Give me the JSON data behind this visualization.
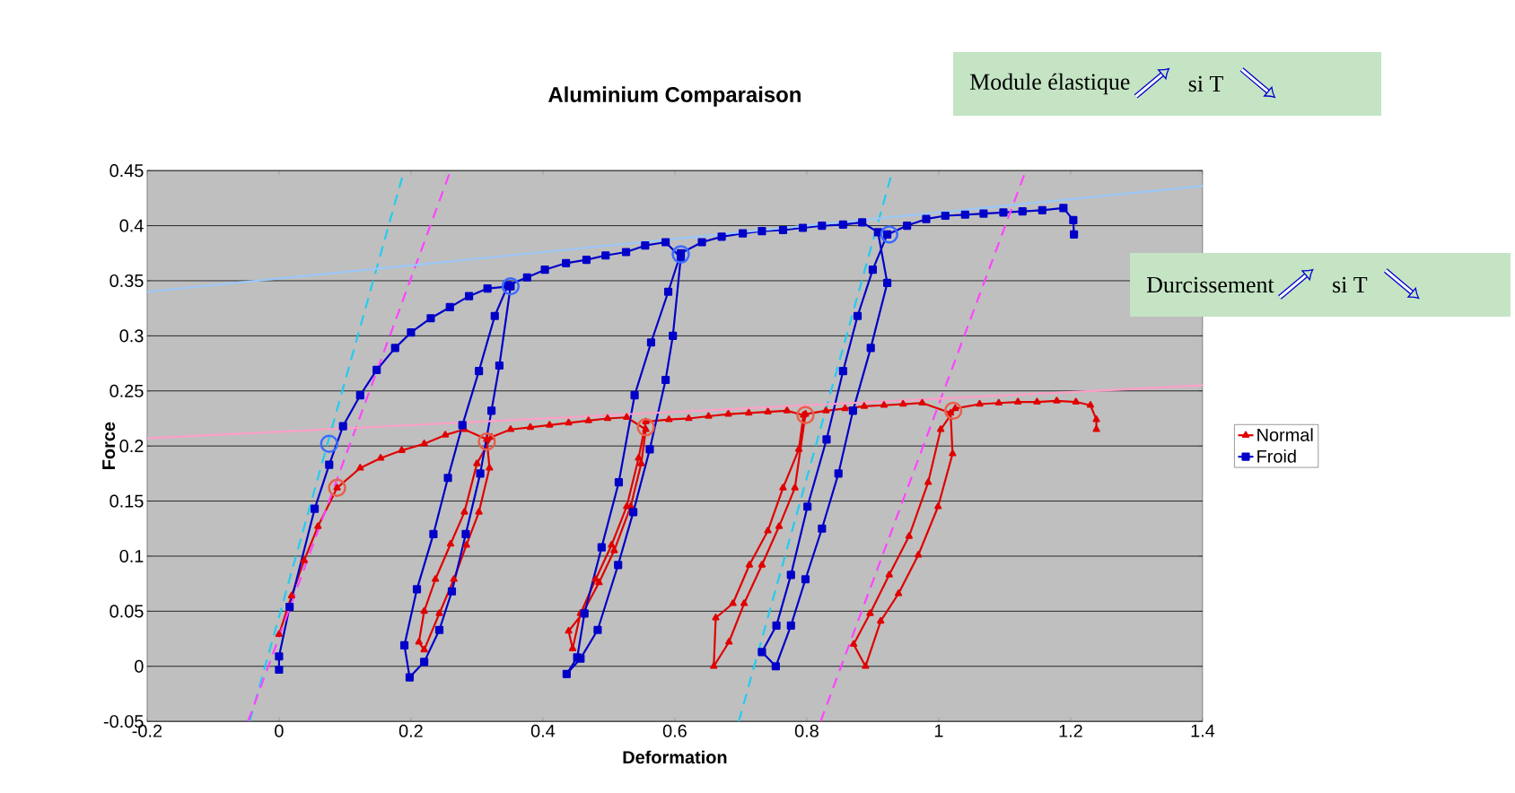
{
  "chart_data": {
    "type": "line",
    "title": "Aluminium Comparaison",
    "xlabel": "Deformation",
    "ylabel": "Force",
    "xlim": [
      -0.2,
      1.4
    ],
    "ylim": [
      -0.05,
      0.45
    ],
    "xticks": [
      -0.2,
      0,
      0.2,
      0.4,
      0.6,
      0.8,
      1,
      1.2,
      1.4
    ],
    "yticks": [
      -0.05,
      0,
      0.05,
      0.1,
      0.15,
      0.2,
      0.25,
      0.3,
      0.35,
      0.4,
      0.45
    ],
    "grid": "y",
    "legend": "right",
    "annotations": [
      "Module élastique",
      "si T",
      "Durcissement",
      "si T"
    ],
    "series": [
      {
        "name": "Normal",
        "color": "#e00000",
        "marker": "triangle",
        "x": [
          0.0,
          0.019,
          0.038,
          0.059,
          0.088,
          0.123,
          0.154,
          0.186,
          0.22,
          0.252,
          0.281,
          0.315,
          0.319,
          0.303,
          0.284,
          0.265,
          0.243,
          0.22,
          0.212,
          0.22,
          0.237,
          0.26,
          0.281,
          0.3,
          0.322,
          0.351,
          0.381,
          0.41,
          0.439,
          0.469,
          0.498,
          0.527,
          0.556,
          0.549,
          0.533,
          0.508,
          0.485,
          0.46,
          0.439,
          0.445,
          0.457,
          0.48,
          0.504,
          0.527,
          0.545,
          0.556,
          0.591,
          0.621,
          0.651,
          0.681,
          0.712,
          0.741,
          0.77,
          0.795,
          0.788,
          0.764,
          0.741,
          0.713,
          0.688,
          0.662,
          0.659,
          0.682,
          0.705,
          0.732,
          0.758,
          0.782,
          0.798,
          0.829,
          0.858,
          0.887,
          0.917,
          0.946,
          0.975,
          1.018,
          1.021,
          0.999,
          0.969,
          0.939,
          0.912,
          0.889,
          0.871,
          0.896,
          0.925,
          0.955,
          0.984,
          1.003,
          1.025,
          1.062,
          1.091,
          1.12,
          1.149,
          1.179,
          1.208,
          1.23,
          1.239,
          1.239
        ],
        "values": [
          0.029,
          0.064,
          0.096,
          0.127,
          0.162,
          0.18,
          0.189,
          0.196,
          0.202,
          0.21,
          0.215,
          0.206,
          0.18,
          0.14,
          0.11,
          0.079,
          0.048,
          0.015,
          0.022,
          0.05,
          0.079,
          0.111,
          0.14,
          0.184,
          0.208,
          0.215,
          0.217,
          0.219,
          0.221,
          0.223,
          0.225,
          0.226,
          0.215,
          0.184,
          0.145,
          0.105,
          0.076,
          0.048,
          0.032,
          0.016,
          0.048,
          0.079,
          0.11,
          0.145,
          0.189,
          0.222,
          0.224,
          0.225,
          0.227,
          0.229,
          0.23,
          0.231,
          0.232,
          0.228,
          0.197,
          0.162,
          0.123,
          0.092,
          0.057,
          0.044,
          0.0,
          0.022,
          0.057,
          0.092,
          0.127,
          0.162,
          0.229,
          0.232,
          0.234,
          0.236,
          0.237,
          0.238,
          0.239,
          0.23,
          0.193,
          0.145,
          0.101,
          0.066,
          0.041,
          0.0,
          0.02,
          0.048,
          0.083,
          0.118,
          0.167,
          0.215,
          0.234,
          0.238,
          0.239,
          0.24,
          0.24,
          0.241,
          0.24,
          0.237,
          0.224,
          0.215
        ]
      },
      {
        "name": "Froid",
        "color": "#0000c8",
        "marker": "square",
        "x": [
          0.0,
          0.0,
          0.016,
          0.054,
          0.076,
          0.097,
          0.123,
          0.148,
          0.176,
          0.2,
          0.23,
          0.259,
          0.288,
          0.316,
          0.351,
          0.334,
          0.322,
          0.305,
          0.283,
          0.262,
          0.243,
          0.22,
          0.198,
          0.19,
          0.209,
          0.234,
          0.256,
          0.278,
          0.303,
          0.327,
          0.347,
          0.376,
          0.403,
          0.435,
          0.466,
          0.495,
          0.526,
          0.555,
          0.586,
          0.609,
          0.597,
          0.586,
          0.562,
          0.537,
          0.514,
          0.483,
          0.457,
          0.436,
          0.452,
          0.463,
          0.489,
          0.515,
          0.539,
          0.564,
          0.59,
          0.609,
          0.641,
          0.671,
          0.703,
          0.732,
          0.764,
          0.794,
          0.823,
          0.855,
          0.884,
          0.908,
          0.922,
          0.897,
          0.87,
          0.848,
          0.823,
          0.798,
          0.776,
          0.753,
          0.732,
          0.754,
          0.776,
          0.801,
          0.83,
          0.855,
          0.877,
          0.9,
          0.922,
          0.952,
          0.981,
          1.01,
          1.04,
          1.068,
          1.098,
          1.127,
          1.157,
          1.189,
          1.204,
          1.205
        ],
        "values": [
          -0.003,
          0.009,
          0.054,
          0.143,
          0.183,
          0.218,
          0.246,
          0.269,
          0.289,
          0.303,
          0.316,
          0.326,
          0.336,
          0.343,
          0.345,
          0.273,
          0.232,
          0.175,
          0.12,
          0.068,
          0.033,
          0.004,
          -0.01,
          0.019,
          0.07,
          0.12,
          0.171,
          0.219,
          0.268,
          0.318,
          0.346,
          0.353,
          0.36,
          0.366,
          0.369,
          0.373,
          0.376,
          0.382,
          0.385,
          0.371,
          0.3,
          0.26,
          0.197,
          0.14,
          0.092,
          0.033,
          0.007,
          -0.007,
          0.008,
          0.048,
          0.108,
          0.167,
          0.246,
          0.294,
          0.34,
          0.375,
          0.385,
          0.39,
          0.393,
          0.395,
          0.396,
          0.398,
          0.4,
          0.401,
          0.403,
          0.394,
          0.348,
          0.289,
          0.232,
          0.175,
          0.125,
          0.079,
          0.037,
          0.0,
          0.013,
          0.037,
          0.083,
          0.145,
          0.206,
          0.268,
          0.318,
          0.36,
          0.392,
          0.4,
          0.406,
          0.409,
          0.41,
          0.411,
          0.412,
          0.413,
          0.414,
          0.416,
          0.405,
          0.392
        ]
      },
      {
        "type": "scatter",
        "color": "#3a6cff",
        "marker": "circle",
        "x": [
          0.076,
          0.351,
          0.609,
          0.925
        ],
        "values": [
          0.202,
          0.345,
          0.374,
          0.392
        ]
      },
      {
        "type": "scatter",
        "color": "#e8604a",
        "marker": "circle",
        "x": [
          0.088,
          0.315,
          0.556,
          0.798,
          1.022
        ],
        "values": [
          0.162,
          0.204,
          0.217,
          0.228,
          0.232
        ]
      },
      {
        "color": "#22ccf0",
        "line_style": "dashed",
        "marker": "none",
        "x": [
          -0.0445,
          0.1895
        ],
        "values": [
          -0.05,
          0.45
        ]
      },
      {
        "color": "#ff44ff",
        "line_style": "dashed",
        "marker": "none",
        "x": [
          -0.047,
          0.26
        ],
        "values": [
          -0.05,
          0.45
        ]
      },
      {
        "color": "#22ccf0",
        "line_style": "dashed",
        "marker": "none",
        "x": [
          0.697,
          0.93
        ],
        "values": [
          -0.05,
          0.45
        ]
      },
      {
        "color": "#ff44ff",
        "line_style": "dashed",
        "marker": "none",
        "x": [
          0.821,
          1.132
        ],
        "values": [
          -0.05,
          0.45
        ]
      },
      {
        "color": "#9cc8f8",
        "line_style": "solid",
        "marker": "none",
        "x": [
          -0.2,
          1.4
        ],
        "values": [
          0.34,
          0.436
        ]
      },
      {
        "color": "#ffa0c8",
        "line_style": "solid",
        "marker": "none",
        "x": [
          -0.2,
          1.4
        ],
        "values": [
          0.207,
          0.255
        ]
      }
    ]
  }
}
